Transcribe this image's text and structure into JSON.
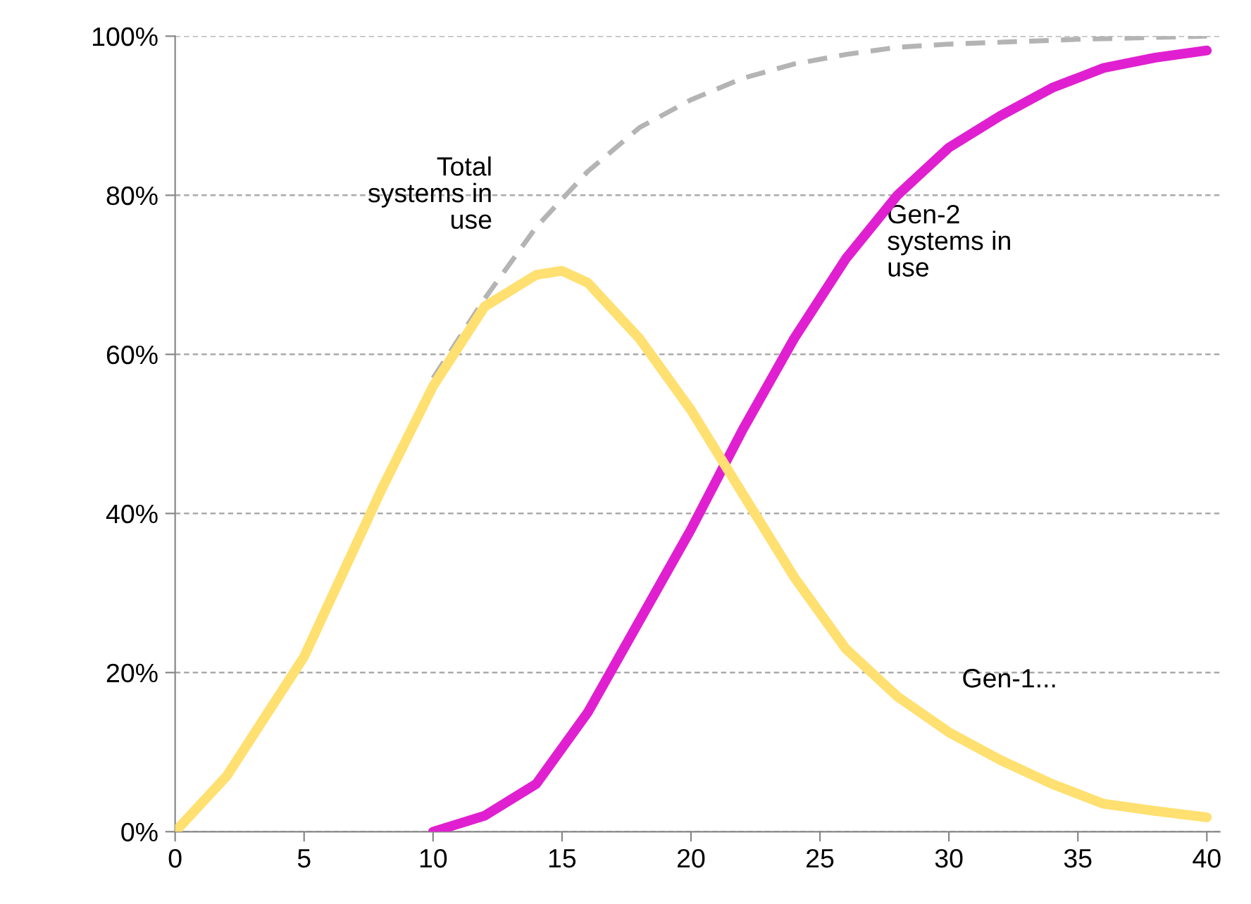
{
  "chart_data": {
    "type": "line",
    "series": [
      {
        "name": "Total systems in use",
        "color": "#b4b4b4",
        "line_style": "dashed",
        "x": [
          10,
          12,
          14,
          16,
          18,
          20,
          22,
          24,
          26,
          28,
          30,
          35,
          40
        ],
        "values": [
          57,
          67,
          76,
          83,
          88.5,
          92,
          94.7,
          96.5,
          97.7,
          98.6,
          99,
          99.6,
          100
        ]
      },
      {
        "name": "Gen-2 systems in use",
        "color": "#e020d0",
        "x": [
          10,
          12,
          14,
          16,
          18,
          20,
          22,
          24,
          26,
          28,
          30,
          32,
          34,
          36,
          38,
          40
        ],
        "values": [
          0,
          2,
          6,
          15,
          26.5,
          38,
          50.5,
          62,
          72,
          80,
          86,
          90,
          93.5,
          96,
          97.3,
          98.2
        ]
      },
      {
        "name": "Gen-1...",
        "color": "#ffe070",
        "x": [
          0,
          2,
          5,
          8,
          10,
          12,
          14,
          15,
          16,
          18,
          20,
          22,
          24,
          26,
          28,
          30,
          32,
          34,
          36,
          38,
          40
        ],
        "values": [
          0,
          7,
          22,
          43,
          56,
          66,
          70,
          70.5,
          69,
          62,
          53,
          42.5,
          32,
          23,
          17,
          12.5,
          9,
          6,
          3.5,
          2.6,
          1.8
        ]
      }
    ],
    "xlim": [
      0,
      40.5
    ],
    "xticks": [
      0,
      5,
      10,
      15,
      20,
      25,
      30,
      35,
      40
    ],
    "ylim": [
      0,
      100
    ],
    "yticks": [
      {
        "value": 0,
        "label": "0%"
      },
      {
        "value": 20,
        "label": "20%"
      },
      {
        "value": 40,
        "label": "40%"
      },
      {
        "value": 60,
        "label": "60%"
      },
      {
        "value": 80,
        "label": "80%"
      },
      {
        "value": 100,
        "label": "100%"
      }
    ],
    "grid": "y",
    "legend": false
  }
}
